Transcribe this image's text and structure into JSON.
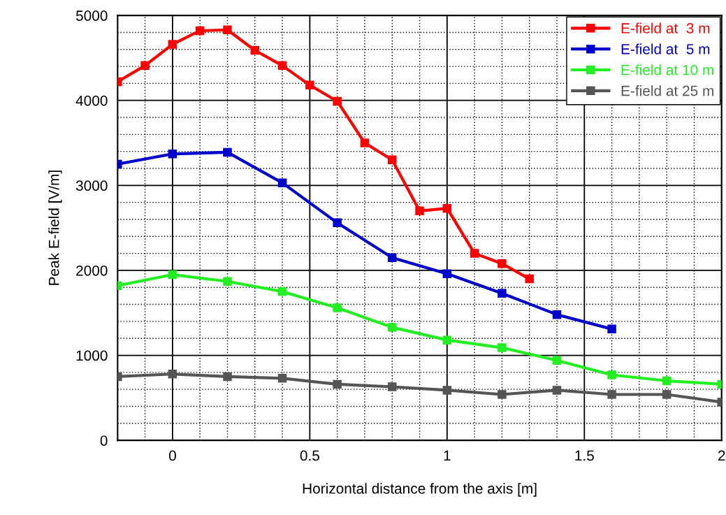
{
  "chart_data": {
    "type": "line",
    "xlabel": "Horizontal distance from the axis [m]",
    "ylabel": "Peak E-field [V/m]",
    "xlim": [
      -0.2,
      2
    ],
    "xticks": [
      0,
      0.5,
      1,
      1.5,
      2
    ],
    "ylim": [
      0,
      5000
    ],
    "yticks": [
      0,
      1000,
      2000,
      3000,
      4000,
      5000
    ],
    "grid": true,
    "legend": "top right",
    "marker": "square",
    "line_style": "solid",
    "series": [
      {
        "name": "E-field at  3 m",
        "color": "#ff0000",
        "x": [
          -0.2,
          -0.1,
          0,
          0.1,
          0.2,
          0.3,
          0.4,
          0.5,
          0.6,
          0.7,
          0.8,
          0.9,
          1.0,
          1.1,
          1.2,
          1.3
        ],
        "values": [
          4220,
          4410,
          4660,
          4820,
          4830,
          4590,
          4410,
          4180,
          3990,
          3500,
          3300,
          2700,
          2730,
          2200,
          2080,
          1900
        ]
      },
      {
        "name": "E-field at  5 m",
        "color": "#0000cc",
        "x": [
          -0.2,
          0,
          0.2,
          0.4,
          0.6,
          0.8,
          1.0,
          1.2,
          1.4,
          1.6
        ],
        "values": [
          3250,
          3370,
          3390,
          3030,
          2560,
          2150,
          1960,
          1730,
          1480,
          1310
        ]
      },
      {
        "name": "E-field at 10 m",
        "color": "#22ee22",
        "x": [
          -0.2,
          0,
          0.2,
          0.4,
          0.6,
          0.8,
          1.0,
          1.2,
          1.4,
          1.6,
          1.8,
          2.0
        ],
        "values": [
          1820,
          1950,
          1870,
          1750,
          1560,
          1330,
          1180,
          1090,
          940,
          770,
          700,
          660
        ]
      },
      {
        "name": "E-field at 25 m",
        "color": "#555555",
        "x": [
          -0.2,
          0,
          0.2,
          0.4,
          0.6,
          0.8,
          1.0,
          1.2,
          1.4,
          1.6,
          1.8,
          2.0
        ],
        "values": [
          750,
          780,
          750,
          730,
          660,
          630,
          590,
          540,
          590,
          540,
          540,
          450
        ]
      }
    ]
  }
}
